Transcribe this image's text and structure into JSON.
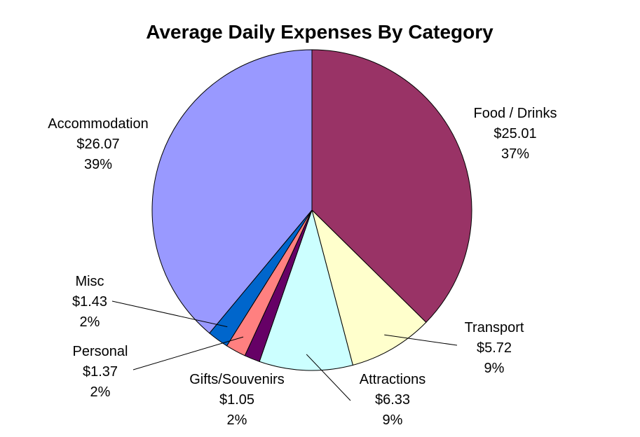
{
  "chart_data": {
    "type": "pie",
    "title": "Average Daily Expenses By Category",
    "legend": "none",
    "slices": [
      {
        "label": "Food / Drinks",
        "value": 25.01,
        "value_label": "$25.01",
        "percent_label": "37%",
        "color": "#993366"
      },
      {
        "label": "Transport",
        "value": 5.72,
        "value_label": "$5.72",
        "percent_label": "9%",
        "color": "#FFFFCC"
      },
      {
        "label": "Attractions",
        "value": 6.33,
        "value_label": "$6.33",
        "percent_label": "9%",
        "color": "#CCFFFF"
      },
      {
        "label": "Gifts/Souvenirs",
        "value": 1.05,
        "value_label": "$1.05",
        "percent_label": "2%",
        "color": "#660066"
      },
      {
        "label": "Personal",
        "value": 1.37,
        "value_label": "$1.37",
        "percent_label": "2%",
        "color": "#FF8080"
      },
      {
        "label": "Misc",
        "value": 1.43,
        "value_label": "$1.43",
        "percent_label": "2%",
        "color": "#0066CC"
      },
      {
        "label": "Accommodation",
        "value": 26.07,
        "value_label": "$26.07",
        "percent_label": "39%",
        "color": "#9999FF"
      }
    ]
  }
}
